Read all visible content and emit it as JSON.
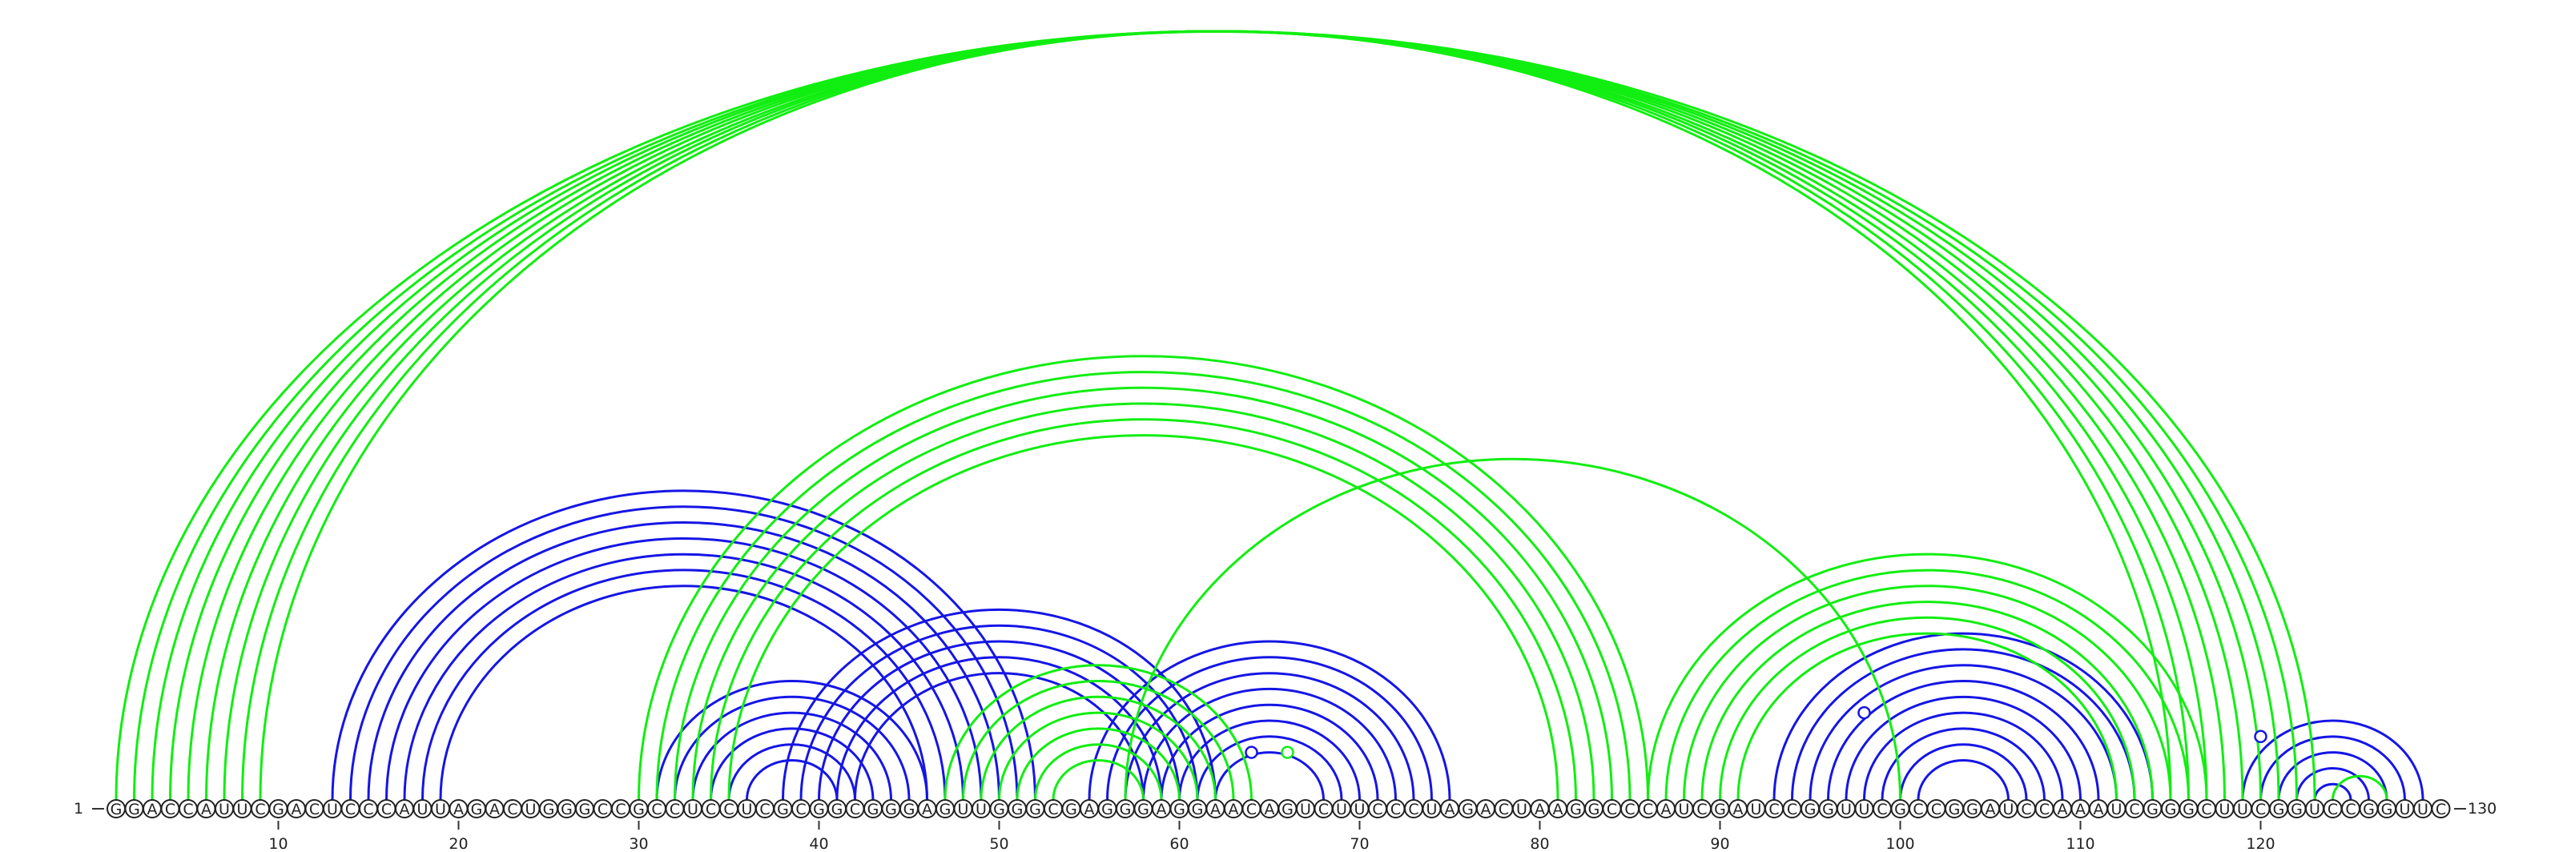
{
  "sequence": "GGACCAUUCGACUCCCAUUAGACUGGGCCGCCUCCUCGCGGCGGGAGUUGGGCGAGGGAGGAACAGUCUUCCCUAGACUAAGGCCCAUCGAUCCGGUUCGCCGGAUCCAAAUCGGGCUUCGGUCCGGUUC",
  "start_label": "1",
  "end_label": "130",
  "ticks": [
    "10",
    "20",
    "30",
    "40",
    "50",
    "60",
    "70",
    "80",
    "90",
    "100",
    "110",
    "120"
  ],
  "colors": {
    "blue": "#1515e6",
    "green": "#11ee11"
  },
  "chart_data": {
    "type": "arc-diagram",
    "length": 130,
    "green_pairs": [
      [
        1,
        123
      ],
      [
        2,
        122
      ],
      [
        3,
        121
      ],
      [
        4,
        120
      ],
      [
        5,
        119
      ],
      [
        6,
        118
      ],
      [
        7,
        117
      ],
      [
        8,
        116
      ],
      [
        9,
        115
      ],
      [
        30,
        86
      ],
      [
        31,
        85
      ],
      [
        32,
        84
      ],
      [
        33,
        83
      ],
      [
        34,
        82
      ],
      [
        35,
        81
      ],
      [
        47,
        64
      ],
      [
        48,
        63
      ],
      [
        49,
        62
      ],
      [
        50,
        61
      ],
      [
        51,
        60
      ],
      [
        52,
        59
      ],
      [
        53,
        58
      ],
      [
        57,
        100
      ],
      [
        86,
        117
      ],
      [
        87,
        116
      ],
      [
        88,
        115
      ],
      [
        89,
        114
      ],
      [
        90,
        113
      ],
      [
        91,
        112
      ],
      [
        124,
        127
      ]
    ],
    "blue_pairs": [
      [
        13,
        52
      ],
      [
        14,
        51
      ],
      [
        15,
        50
      ],
      [
        16,
        49
      ],
      [
        17,
        48
      ],
      [
        18,
        47
      ],
      [
        19,
        46
      ],
      [
        31,
        46
      ],
      [
        32,
        45
      ],
      [
        33,
        44
      ],
      [
        34,
        43
      ],
      [
        35,
        42
      ],
      [
        36,
        41
      ],
      [
        38,
        62
      ],
      [
        39,
        61
      ],
      [
        40,
        60
      ],
      [
        41,
        59
      ],
      [
        42,
        58
      ],
      [
        55,
        75
      ],
      [
        56,
        74
      ],
      [
        57,
        73
      ],
      [
        58,
        72
      ],
      [
        59,
        71
      ],
      [
        60,
        70
      ],
      [
        61,
        69
      ],
      [
        62,
        68
      ],
      [
        93,
        114
      ],
      [
        94,
        113
      ],
      [
        95,
        112
      ],
      [
        96,
        111
      ],
      [
        97,
        110
      ],
      [
        98,
        109
      ],
      [
        99,
        108
      ],
      [
        100,
        107
      ],
      [
        101,
        106
      ],
      [
        119,
        129
      ],
      [
        120,
        128
      ],
      [
        121,
        127
      ],
      [
        122,
        126
      ],
      [
        123,
        125
      ]
    ],
    "unpaired_markers": [
      {
        "pos": 66,
        "color": "green"
      },
      {
        "pos": 64,
        "color": "blue"
      },
      {
        "pos": 98,
        "color": "blue"
      },
      {
        "pos": 120,
        "color": "blue"
      }
    ]
  }
}
